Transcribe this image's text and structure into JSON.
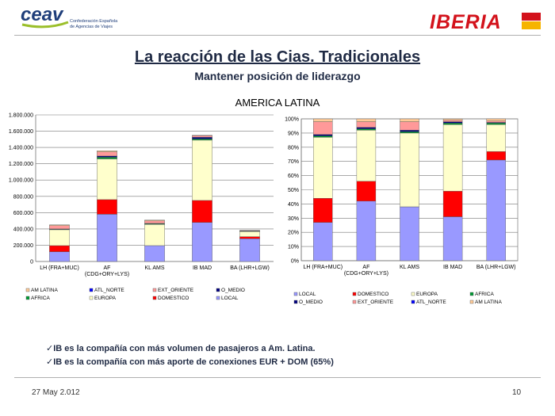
{
  "header": {
    "left_logo_text": "ceav",
    "left_logo_sub1": "Confederación Española",
    "left_logo_sub2": "de Agencias de Viajes",
    "right_logo_text": "IBERIA"
  },
  "slide": {
    "title": "La reacción de las Cias. Tradicionales",
    "subtitle": "Mantener posición de liderazgo",
    "region": "AMERICA LATINA",
    "bullets": [
      "IB es la compañía con más volumen de pasajeros a Am. Latina.",
      "IB es la compañía con más aporte de conexiones EUR + DOM  (65%)"
    ],
    "date": "27 May 2.012",
    "page": "10"
  },
  "colors": {
    "LOCAL": "#9999ff",
    "DOMESTICO": "#ff0000",
    "EUROPA": "#ffffcc",
    "AFRICA": "#009933",
    "O_MEDIO": "#000080",
    "EXT_ORIENTE": "#ff9999",
    "ATL_NORTE": "#0000ff",
    "AM LATINA": "#ffcc99"
  },
  "chart_data": [
    {
      "type": "bar",
      "stacked": true,
      "categories": [
        [
          "LH (FRA+MUC)"
        ],
        [
          "AF",
          "(CDG+ORY+LYS)"
        ],
        [
          "KL AMS"
        ],
        [
          "IB MAD"
        ],
        [
          "BA (LHR+LGW)"
        ]
      ],
      "ylim": [
        0,
        1800000
      ],
      "yticks": [
        "0",
        "200.000",
        "400.000",
        "600.000",
        "800.000",
        "1.000.000",
        "1.200.000",
        "1.400.000",
        "1.600.000",
        "1.800.000"
      ],
      "grid": true,
      "series": [
        {
          "name": "LOCAL",
          "values": [
            120000,
            580000,
            195000,
            480000,
            280000
          ]
        },
        {
          "name": "DOMESTICO",
          "values": [
            75000,
            180000,
            0,
            270000,
            25000
          ]
        },
        {
          "name": "EUROPA",
          "values": [
            195000,
            500000,
            260000,
            740000,
            65000
          ]
        },
        {
          "name": "AFRICA",
          "values": [
            5000,
            20000,
            8000,
            15000,
            3000
          ]
        },
        {
          "name": "O_MEDIO",
          "values": [
            5000,
            15000,
            5000,
            20000,
            3000
          ]
        },
        {
          "name": "EXT_ORIENTE",
          "values": [
            40000,
            50000,
            30000,
            20000,
            4000
          ]
        },
        {
          "name": "ATL_NORTE",
          "values": [
            0,
            0,
            0,
            0,
            0
          ]
        },
        {
          "name": "AM LATINA",
          "values": [
            10000,
            15000,
            10000,
            5000,
            2000
          ]
        }
      ],
      "legend_rows": [
        [
          "AM LATINA",
          "ATL_NORTE",
          "EXT_ORIENTE",
          "O_MEDIO"
        ],
        [
          "AFRICA",
          "EUROPA",
          "DOMESTICO",
          "LOCAL"
        ]
      ],
      "legend": "bottom"
    },
    {
      "type": "bar",
      "stacked": true,
      "percent": true,
      "categories": [
        [
          "LH (FRA+MUC)"
        ],
        [
          "AF",
          "(CDG+ORY+LYS)"
        ],
        [
          "KL AMS"
        ],
        [
          "IB MAD"
        ],
        [
          "BA (LHR+LGW)"
        ]
      ],
      "ylim": [
        0,
        100
      ],
      "yticks": [
        "0%",
        "10%",
        "20%",
        "30%",
        "40%",
        "50%",
        "60%",
        "70%",
        "80%",
        "90%",
        "100%"
      ],
      "grid": true,
      "series": [
        {
          "name": "LOCAL",
          "values": [
            27,
            42,
            38,
            31,
            71
          ]
        },
        {
          "name": "DOMESTICO",
          "values": [
            17,
            14,
            0,
            18,
            6
          ]
        },
        {
          "name": "EUROPA",
          "values": [
            43,
            36,
            52,
            47,
            19
          ]
        },
        {
          "name": "AFRICA",
          "values": [
            1,
            1,
            1,
            1,
            1
          ]
        },
        {
          "name": "O_MEDIO",
          "values": [
            1,
            1,
            1,
            1,
            0.5
          ]
        },
        {
          "name": "EXT_ORIENTE",
          "values": [
            9,
            4,
            6,
            1,
            1
          ]
        },
        {
          "name": "ATL_NORTE",
          "values": [
            0,
            0,
            0,
            0,
            0
          ]
        },
        {
          "name": "AM LATINA",
          "values": [
            2,
            2,
            2,
            1,
            1.5
          ]
        }
      ],
      "legend_rows": [
        [
          "LOCAL",
          "DOMESTICO",
          "EUROPA",
          "AFRICA"
        ],
        [
          "O_MEDIO",
          "EXT_ORIENTE",
          "ATL_NORTE",
          "AM LATINA"
        ]
      ],
      "legend": "bottom"
    }
  ]
}
